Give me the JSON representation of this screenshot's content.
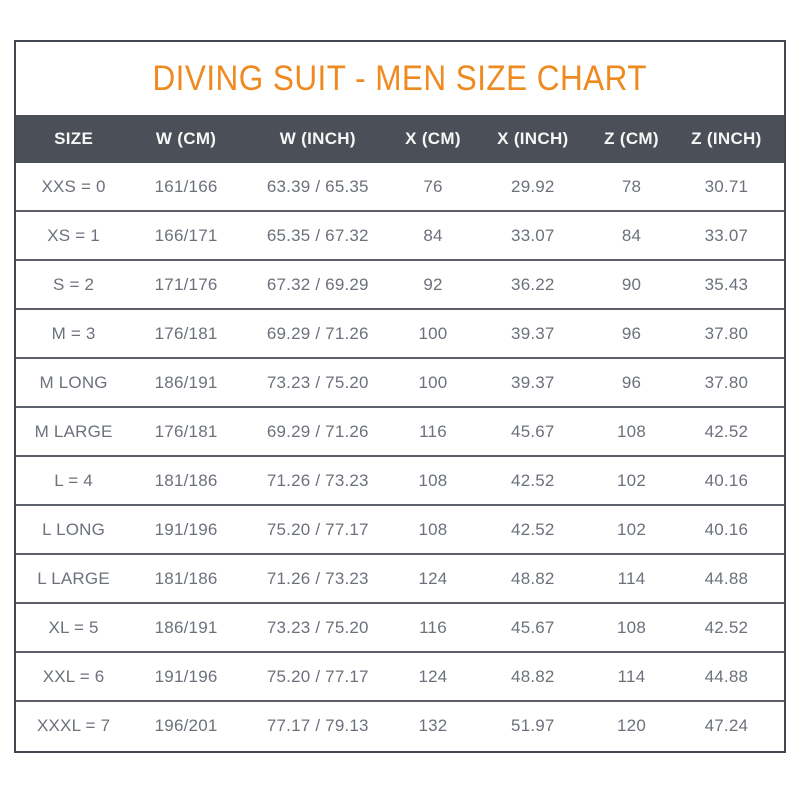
{
  "title": "DIVING SUIT - MEN SIZE CHART",
  "colors": {
    "accent_orange": "#ee8a1f",
    "header_background": "#4b4f58",
    "header_text": "#f6f6f6",
    "body_text": "#6c717b",
    "border": "#43474f"
  },
  "chart_data": {
    "type": "table",
    "title": "DIVING SUIT - MEN SIZE CHART",
    "columns": [
      "SIZE",
      "W (CM)",
      "W (INCH)",
      "X (CM)",
      "X (INCH)",
      "Z (CM)",
      "Z (INCH)"
    ],
    "rows": [
      [
        "XXS = 0",
        "161/166",
        "63.39 / 65.35",
        "76",
        "29.92",
        "78",
        "30.71"
      ],
      [
        "XS = 1",
        "166/171",
        "65.35 / 67.32",
        "84",
        "33.07",
        "84",
        "33.07"
      ],
      [
        "S = 2",
        "171/176",
        "67.32 / 69.29",
        "92",
        "36.22",
        "90",
        "35.43"
      ],
      [
        "M = 3",
        "176/181",
        "69.29 / 71.26",
        "100",
        "39.37",
        "96",
        "37.80"
      ],
      [
        "M LONG",
        "186/191",
        "73.23 / 75.20",
        "100",
        "39.37",
        "96",
        "37.80"
      ],
      [
        "M LARGE",
        "176/181",
        "69.29 / 71.26",
        "116",
        "45.67",
        "108",
        "42.52"
      ],
      [
        "L = 4",
        "181/186",
        "71.26 / 73.23",
        "108",
        "42.52",
        "102",
        "40.16"
      ],
      [
        "L LONG",
        "191/196",
        "75.20 / 77.17",
        "108",
        "42.52",
        "102",
        "40.16"
      ],
      [
        "L LARGE",
        "181/186",
        "71.26 / 73.23",
        "124",
        "48.82",
        "114",
        "44.88"
      ],
      [
        "XL = 5",
        "186/191",
        "73.23 / 75.20",
        "116",
        "45.67",
        "108",
        "42.52"
      ],
      [
        "XXL = 6",
        "191/196",
        "75.20 / 77.17",
        "124",
        "48.82",
        "114",
        "44.88"
      ],
      [
        "XXXL = 7",
        "196/201",
        "77.17 / 79.13",
        "132",
        "51.97",
        "120",
        "47.24"
      ]
    ]
  }
}
